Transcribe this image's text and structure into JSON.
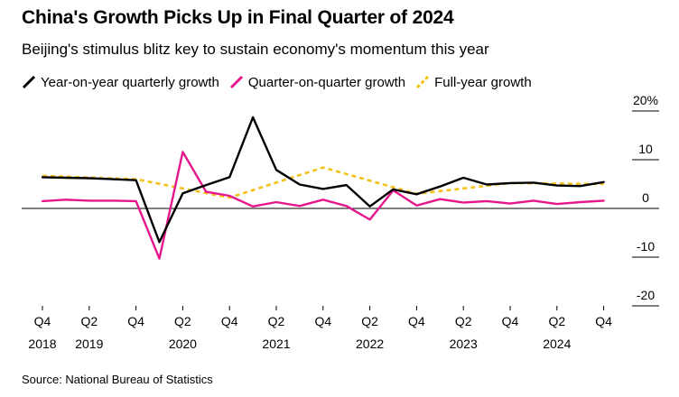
{
  "title": "China's Growth Picks Up in Final Quarter of 2024",
  "subtitle": "Beijing's stimulus blitz key to sustain economy's momentum this year",
  "source": "Source: National Bureau of Statistics",
  "colors": {
    "yoy": "#000000",
    "qoq": "#e6178d",
    "full_year": "#f2c21a",
    "zero_line": "#000000"
  },
  "chart_data": {
    "type": "line",
    "x": [
      "Q4 2018",
      "Q1 2019",
      "Q2 2019",
      "Q3 2019",
      "Q4 2019",
      "Q1 2020",
      "Q2 2020",
      "Q3 2020",
      "Q4 2020",
      "Q1 2021",
      "Q2 2021",
      "Q3 2021",
      "Q4 2021",
      "Q1 2022",
      "Q2 2022",
      "Q3 2022",
      "Q4 2022",
      "Q1 2023",
      "Q2 2023",
      "Q3 2023",
      "Q4 2023",
      "Q1 2024",
      "Q2 2024",
      "Q3 2024",
      "Q4 2024"
    ],
    "x_tick_labels": [
      {
        "index": 0,
        "line1": "Q4",
        "line2": "2018"
      },
      {
        "index": 2,
        "line1": "Q2",
        "line2": "2019"
      },
      {
        "index": 4,
        "line1": "Q4",
        "line2": ""
      },
      {
        "index": 6,
        "line1": "Q2",
        "line2": "2020"
      },
      {
        "index": 8,
        "line1": "Q4",
        "line2": ""
      },
      {
        "index": 10,
        "line1": "Q2",
        "line2": "2021"
      },
      {
        "index": 12,
        "line1": "Q4",
        "line2": ""
      },
      {
        "index": 14,
        "line1": "Q2",
        "line2": "2022"
      },
      {
        "index": 16,
        "line1": "Q4",
        "line2": ""
      },
      {
        "index": 18,
        "line1": "Q2",
        "line2": "2023"
      },
      {
        "index": 20,
        "line1": "Q4",
        "line2": ""
      },
      {
        "index": 22,
        "line1": "Q2",
        "line2": "2024"
      },
      {
        "index": 24,
        "line1": "Q4",
        "line2": ""
      }
    ],
    "y_ticks": [
      {
        "value": 20,
        "label": "20%"
      },
      {
        "value": 10,
        "label": "10"
      },
      {
        "value": 0,
        "label": "0"
      },
      {
        "value": -10,
        "label": "-10"
      },
      {
        "value": -20,
        "label": "-20"
      }
    ],
    "ylim": [
      -20,
      20
    ],
    "grid": false,
    "legend_position": "top-left",
    "series": [
      {
        "name": "Year-on-year quarterly growth",
        "style": "solid",
        "color_key": "yoy",
        "values": [
          6.4,
          6.3,
          6.2,
          6.0,
          5.8,
          -6.9,
          3.1,
          4.8,
          6.4,
          18.7,
          7.9,
          4.9,
          4.0,
          4.8,
          0.4,
          3.9,
          2.9,
          4.5,
          6.3,
          4.9,
          5.2,
          5.3,
          4.7,
          4.6,
          5.4
        ]
      },
      {
        "name": "Quarter-on-quarter growth",
        "style": "solid",
        "color_key": "qoq",
        "values": [
          1.5,
          1.8,
          1.6,
          1.6,
          1.5,
          -10.3,
          11.6,
          3.4,
          2.6,
          0.4,
          1.3,
          0.5,
          1.8,
          0.5,
          -2.3,
          3.7,
          0.6,
          1.9,
          1.2,
          1.5,
          1.0,
          1.6,
          0.9,
          1.3,
          1.6
        ]
      },
      {
        "name": "Full-year growth",
        "style": "dashed",
        "color_key": "full_year",
        "values": [
          6.7,
          null,
          null,
          null,
          6.0,
          null,
          null,
          null,
          2.2,
          null,
          null,
          null,
          8.4,
          null,
          null,
          null,
          3.0,
          null,
          null,
          null,
          5.2,
          null,
          null,
          null,
          5.0
        ]
      }
    ]
  }
}
